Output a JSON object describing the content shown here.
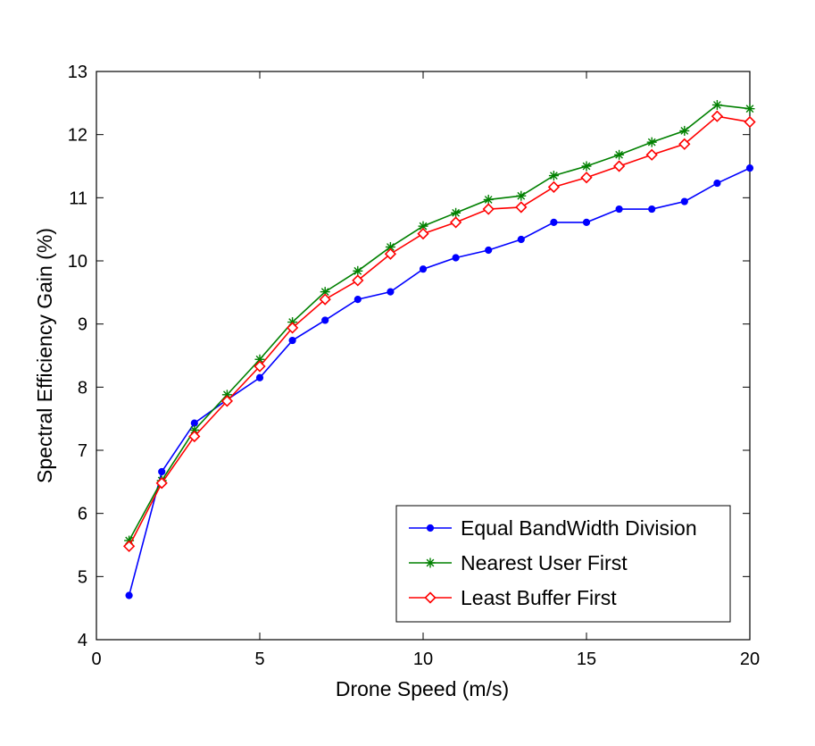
{
  "chart_data": {
    "type": "line",
    "title": "",
    "xlabel": "Drone Speed (m/s)",
    "ylabel": "Spectral Efficiency Gain (%)",
    "xlim": [
      0,
      20
    ],
    "ylim": [
      4,
      13
    ],
    "xticks": [
      0,
      5,
      10,
      15,
      20
    ],
    "yticks": [
      4,
      5,
      6,
      7,
      8,
      9,
      10,
      11,
      12,
      13
    ],
    "grid": false,
    "legend_position": "bottom-right",
    "x": [
      1,
      2,
      3,
      4,
      5,
      6,
      7,
      8,
      9,
      10,
      11,
      12,
      13,
      14,
      15,
      16,
      17,
      18,
      19,
      20
    ],
    "series": [
      {
        "name": "Equal BandWidth Division",
        "color": "#0000ff",
        "marker": "dot",
        "values": [
          4.7,
          6.66,
          7.43,
          7.8,
          8.15,
          8.74,
          9.06,
          9.39,
          9.51,
          9.87,
          10.05,
          10.17,
          10.34,
          10.61,
          10.61,
          10.82,
          10.82,
          10.94,
          11.23,
          11.47
        ]
      },
      {
        "name": "Nearest User First",
        "color": "#008000",
        "marker": "asterisk",
        "values": [
          5.57,
          6.52,
          7.32,
          7.88,
          8.44,
          9.03,
          9.51,
          9.84,
          10.22,
          10.55,
          10.76,
          10.97,
          11.03,
          11.35,
          11.5,
          11.68,
          11.88,
          12.06,
          12.47,
          12.41
        ]
      },
      {
        "name": "Least Buffer First",
        "color": "#ff0000",
        "marker": "diamond",
        "values": [
          5.48,
          6.48,
          7.22,
          7.78,
          8.33,
          8.94,
          9.39,
          9.69,
          10.11,
          10.43,
          10.61,
          10.82,
          10.85,
          11.17,
          11.32,
          11.5,
          11.68,
          11.85,
          12.29,
          12.2
        ]
      }
    ]
  }
}
